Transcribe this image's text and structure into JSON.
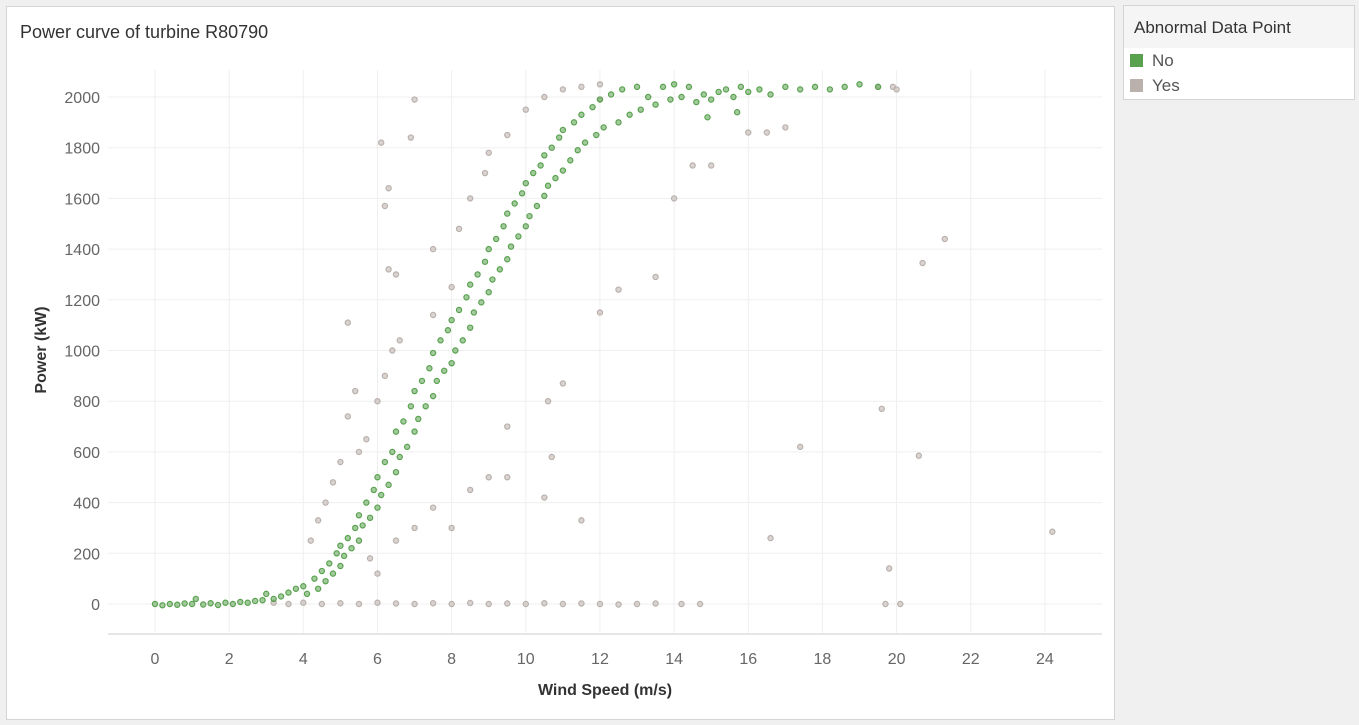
{
  "chart_data": {
    "type": "scatter",
    "title": "Power curve of turbine R80790",
    "xlabel": "Wind Speed (m/s)",
    "ylabel": "Power (kW)",
    "xlim": [
      -1.3,
      25.5
    ],
    "ylim": [
      -120,
      2150
    ],
    "xticks": [
      "0",
      "2",
      "4",
      "6",
      "8",
      "10",
      "12",
      "14",
      "16",
      "18",
      "20",
      "22",
      "24"
    ],
    "yticks": [
      "0",
      "200",
      "400",
      "600",
      "800",
      "1000",
      "1200",
      "1400",
      "1600",
      "1800",
      "2000"
    ],
    "grid": true,
    "legend": {
      "title": "Abnormal Data Point",
      "position": "right"
    },
    "series": [
      {
        "name": "Yes",
        "color": "#BAB0AC",
        "points": [
          [
            3.2,
            5
          ],
          [
            3.6,
            0
          ],
          [
            4,
            5
          ],
          [
            4.5,
            0
          ],
          [
            5,
            3
          ],
          [
            5.5,
            0
          ],
          [
            6,
            5
          ],
          [
            6.5,
            2
          ],
          [
            7,
            0
          ],
          [
            7.5,
            3
          ],
          [
            8,
            0
          ],
          [
            8.5,
            4
          ],
          [
            9,
            0
          ],
          [
            9.5,
            2
          ],
          [
            10,
            0
          ],
          [
            10.5,
            3
          ],
          [
            11,
            0
          ],
          [
            11.5,
            2
          ],
          [
            12,
            0
          ],
          [
            12.5,
            -2
          ],
          [
            13,
            0
          ],
          [
            13.5,
            2
          ],
          [
            14.2,
            0
          ],
          [
            14.7,
            0
          ],
          [
            4.2,
            250
          ],
          [
            4.4,
            330
          ],
          [
            4.6,
            400
          ],
          [
            4.8,
            480
          ],
          [
            5,
            560
          ],
          [
            5.2,
            740
          ],
          [
            5.4,
            840
          ],
          [
            5.2,
            1110
          ],
          [
            5.5,
            600
          ],
          [
            5.7,
            650
          ],
          [
            6,
            800
          ],
          [
            6.2,
            900
          ],
          [
            6.4,
            1000
          ],
          [
            6.6,
            1040
          ],
          [
            6.3,
            1320
          ],
          [
            6.5,
            1300
          ],
          [
            6.2,
            1570
          ],
          [
            6.3,
            1640
          ],
          [
            6.1,
            1820
          ],
          [
            6.9,
            1840
          ],
          [
            7,
            1990
          ],
          [
            7.5,
            1140
          ],
          [
            7.5,
            1400
          ],
          [
            8,
            1250
          ],
          [
            8.2,
            1480
          ],
          [
            8.5,
            1600
          ],
          [
            8.9,
            1700
          ],
          [
            9,
            1780
          ],
          [
            9.5,
            1850
          ],
          [
            10,
            1950
          ],
          [
            10.5,
            2000
          ],
          [
            11,
            2030
          ],
          [
            11.5,
            2040
          ],
          [
            12,
            2050
          ],
          [
            12,
            1990
          ],
          [
            5.8,
            180
          ],
          [
            6,
            120
          ],
          [
            6.5,
            250
          ],
          [
            7,
            300
          ],
          [
            7.5,
            380
          ],
          [
            8,
            300
          ],
          [
            8.5,
            450
          ],
          [
            9,
            500
          ],
          [
            9.5,
            500
          ],
          [
            10.5,
            420
          ],
          [
            10.7,
            580
          ],
          [
            11.5,
            330
          ],
          [
            11,
            870
          ],
          [
            10.6,
            800
          ],
          [
            9.5,
            700
          ],
          [
            12,
            1150
          ],
          [
            12.5,
            1240
          ],
          [
            13.5,
            1290
          ],
          [
            14,
            1600
          ],
          [
            14.5,
            1730
          ],
          [
            15,
            1730
          ],
          [
            16,
            1860
          ],
          [
            16.5,
            1860
          ],
          [
            17,
            1880
          ],
          [
            17.4,
            620
          ],
          [
            16.6,
            260
          ],
          [
            19.6,
            770
          ],
          [
            19.7,
            0
          ],
          [
            19.8,
            140
          ],
          [
            20.1,
            0
          ],
          [
            20.6,
            585
          ],
          [
            20.7,
            1345
          ],
          [
            21.3,
            1440
          ],
          [
            24.2,
            285
          ],
          [
            19.9,
            2040
          ],
          [
            20,
            2030
          ],
          [
            19.5,
            2040
          ]
        ]
      },
      {
        "name": "No",
        "color": "#59A14F",
        "points": [
          [
            0,
            0
          ],
          [
            0.2,
            -5
          ],
          [
            0.4,
            0
          ],
          [
            0.6,
            -3
          ],
          [
            0.8,
            2
          ],
          [
            1,
            0
          ],
          [
            1.1,
            20
          ],
          [
            1.3,
            -2
          ],
          [
            1.5,
            3
          ],
          [
            1.7,
            -4
          ],
          [
            1.9,
            5
          ],
          [
            2.1,
            0
          ],
          [
            2.3,
            8
          ],
          [
            2.5,
            5
          ],
          [
            2.7,
            12
          ],
          [
            2.9,
            15
          ],
          [
            3,
            40
          ],
          [
            3.2,
            20
          ],
          [
            3.4,
            30
          ],
          [
            3.6,
            45
          ],
          [
            3.8,
            60
          ],
          [
            4,
            70
          ],
          [
            4.1,
            40
          ],
          [
            4.3,
            100
          ],
          [
            4.4,
            60
          ],
          [
            4.5,
            130
          ],
          [
            4.6,
            90
          ],
          [
            4.7,
            160
          ],
          [
            4.8,
            120
          ],
          [
            4.9,
            200
          ],
          [
            5,
            150
          ],
          [
            5,
            230
          ],
          [
            5.1,
            190
          ],
          [
            5.2,
            260
          ],
          [
            5.3,
            220
          ],
          [
            5.4,
            300
          ],
          [
            5.5,
            250
          ],
          [
            5.5,
            350
          ],
          [
            5.6,
            310
          ],
          [
            5.7,
            400
          ],
          [
            5.8,
            340
          ],
          [
            5.9,
            450
          ],
          [
            6,
            380
          ],
          [
            6,
            500
          ],
          [
            6.1,
            430
          ],
          [
            6.2,
            560
          ],
          [
            6.3,
            470
          ],
          [
            6.4,
            600
          ],
          [
            6.5,
            520
          ],
          [
            6.5,
            680
          ],
          [
            6.6,
            580
          ],
          [
            6.7,
            720
          ],
          [
            6.8,
            620
          ],
          [
            6.9,
            780
          ],
          [
            7,
            680
          ],
          [
            7,
            840
          ],
          [
            7.1,
            730
          ],
          [
            7.2,
            880
          ],
          [
            7.3,
            780
          ],
          [
            7.4,
            930
          ],
          [
            7.5,
            820
          ],
          [
            7.5,
            990
          ],
          [
            7.6,
            880
          ],
          [
            7.7,
            1040
          ],
          [
            7.8,
            920
          ],
          [
            7.9,
            1080
          ],
          [
            8,
            950
          ],
          [
            8,
            1120
          ],
          [
            8.1,
            1000
          ],
          [
            8.2,
            1160
          ],
          [
            8.3,
            1040
          ],
          [
            8.4,
            1210
          ],
          [
            8.5,
            1090
          ],
          [
            8.5,
            1260
          ],
          [
            8.6,
            1150
          ],
          [
            8.7,
            1300
          ],
          [
            8.8,
            1190
          ],
          [
            8.9,
            1350
          ],
          [
            9,
            1230
          ],
          [
            9,
            1400
          ],
          [
            9.1,
            1280
          ],
          [
            9.2,
            1440
          ],
          [
            9.3,
            1320
          ],
          [
            9.4,
            1490
          ],
          [
            9.5,
            1360
          ],
          [
            9.5,
            1540
          ],
          [
            9.6,
            1410
          ],
          [
            9.7,
            1580
          ],
          [
            9.8,
            1450
          ],
          [
            9.9,
            1620
          ],
          [
            10,
            1490
          ],
          [
            10,
            1660
          ],
          [
            10.1,
            1530
          ],
          [
            10.2,
            1700
          ],
          [
            10.3,
            1570
          ],
          [
            10.4,
            1730
          ],
          [
            10.5,
            1610
          ],
          [
            10.5,
            1770
          ],
          [
            10.6,
            1650
          ],
          [
            10.7,
            1800
          ],
          [
            10.8,
            1680
          ],
          [
            10.9,
            1840
          ],
          [
            11,
            1710
          ],
          [
            11,
            1870
          ],
          [
            11.2,
            1750
          ],
          [
            11.3,
            1900
          ],
          [
            11.4,
            1790
          ],
          [
            11.5,
            1930
          ],
          [
            11.6,
            1820
          ],
          [
            11.8,
            1960
          ],
          [
            11.9,
            1850
          ],
          [
            12,
            1990
          ],
          [
            12.1,
            1880
          ],
          [
            12.3,
            2010
          ],
          [
            12.5,
            1900
          ],
          [
            12.6,
            2030
          ],
          [
            12.8,
            1930
          ],
          [
            13,
            2040
          ],
          [
            13.1,
            1950
          ],
          [
            13.3,
            2000
          ],
          [
            13.5,
            1970
          ],
          [
            13.7,
            2040
          ],
          [
            13.9,
            1990
          ],
          [
            14,
            2050
          ],
          [
            14.2,
            2000
          ],
          [
            14.4,
            2040
          ],
          [
            14.6,
            1980
          ],
          [
            14.8,
            2010
          ],
          [
            15,
            1990
          ],
          [
            15.2,
            2020
          ],
          [
            15.4,
            2030
          ],
          [
            15.6,
            2000
          ],
          [
            15.8,
            2040
          ],
          [
            16,
            2020
          ],
          [
            16.3,
            2030
          ],
          [
            16.6,
            2010
          ],
          [
            17,
            2040
          ],
          [
            17.4,
            2030
          ],
          [
            17.8,
            2040
          ],
          [
            18.2,
            2030
          ],
          [
            18.6,
            2040
          ],
          [
            19,
            2050
          ],
          [
            19.5,
            2040
          ],
          [
            15.7,
            1940
          ],
          [
            14.9,
            1920
          ]
        ]
      }
    ]
  }
}
